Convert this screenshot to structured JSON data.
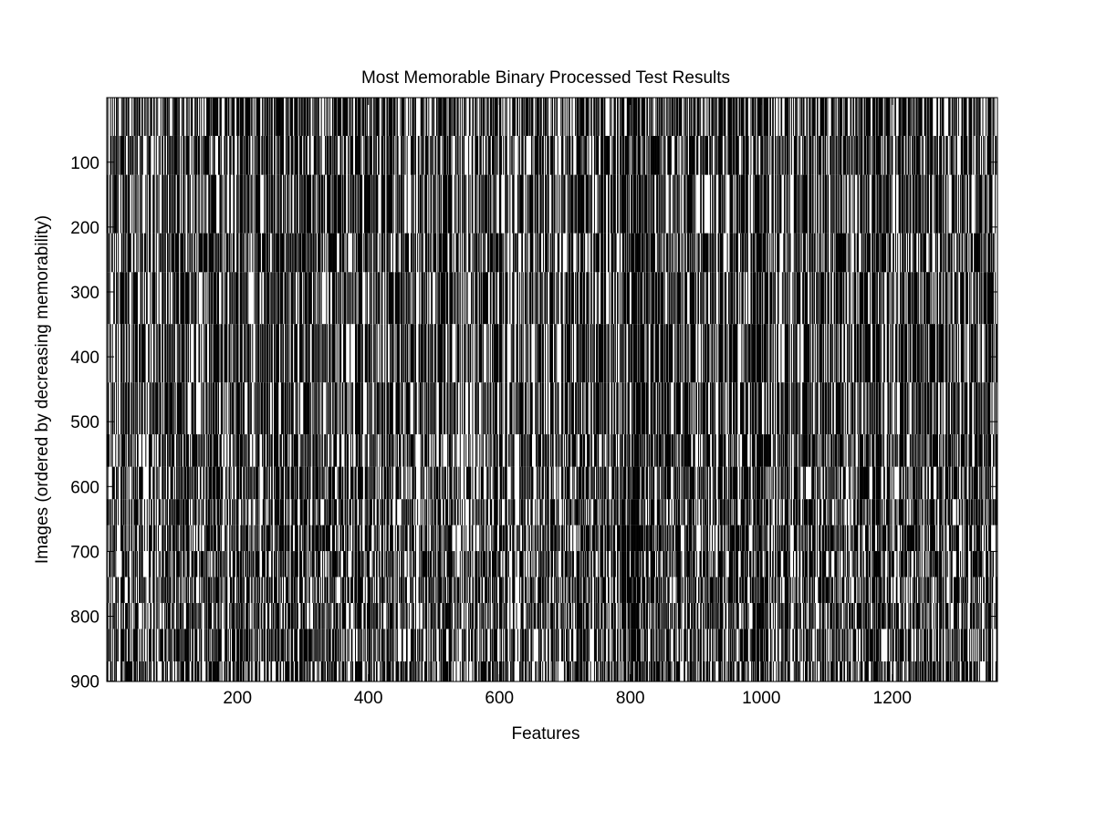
{
  "chart_data": {
    "type": "heatmap",
    "colormap": "binary (black = 1, white = 0)",
    "title": "Most Memorable Binary Processed Test Results",
    "xlabel": "Features",
    "ylabel": "Images (ordered by decreasing memorability)",
    "xlim": [
      0.5,
      1360.5
    ],
    "ylim": [
      0.5,
      900.5
    ],
    "y_reversed": true,
    "grid": false,
    "n_features": 1360,
    "n_images": 900,
    "x_ticks": [
      200,
      400,
      600,
      800,
      1000,
      1200
    ],
    "x_tick_labels": [
      "200",
      "400",
      "600",
      "800",
      "1000",
      "1200"
    ],
    "y_ticks": [
      100,
      200,
      300,
      400,
      500,
      600,
      700,
      800,
      900
    ],
    "y_tick_labels": [
      "100",
      "200",
      "300",
      "400",
      "500",
      "600",
      "700",
      "800",
      "900"
    ],
    "approximate_fill_fraction": 0.5
  }
}
